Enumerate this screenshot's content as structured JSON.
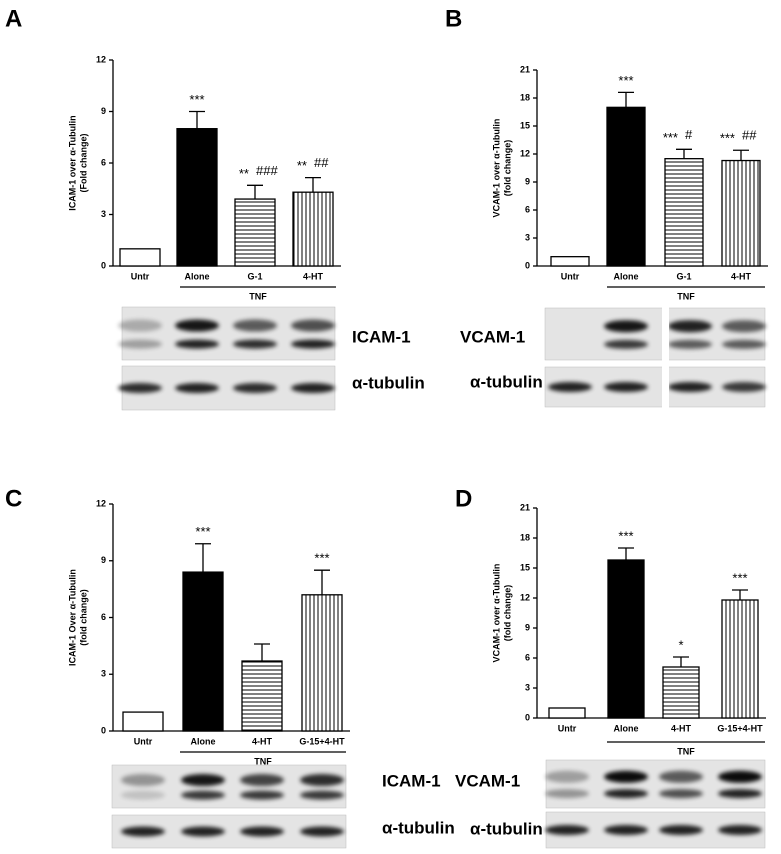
{
  "chart_data": [
    {
      "type": "bar",
      "panel": "A",
      "ylabel": [
        "ICAM-1 over  α-Tubulin",
        "(Fold change)"
      ],
      "categories": [
        "Untr",
        "Alone",
        "G-1",
        "4-HT"
      ],
      "values": [
        1.0,
        8.0,
        3.9,
        4.3
      ],
      "errors": [
        null,
        1.0,
        0.8,
        0.85
      ],
      "fills": [
        "white",
        "black",
        "hstripe",
        "vstripe"
      ],
      "significance": [
        null,
        "***",
        "**",
        "**"
      ],
      "significance2": [
        null,
        null,
        "###",
        "##"
      ],
      "group_label": "TNF",
      "ylim": [
        0,
        12
      ],
      "yticks": [
        0,
        3,
        6,
        9,
        12
      ],
      "blot_labels": [
        "ICAM-1",
        "α-tubulin"
      ]
    },
    {
      "type": "bar",
      "panel": "B",
      "ylabel": [
        "VCAM-1 over  α-Tubulin",
        "(fold change)"
      ],
      "categories": [
        "Untr",
        "Alone",
        "G-1",
        "4-HT"
      ],
      "values": [
        1.0,
        17.0,
        11.5,
        11.3
      ],
      "errors": [
        null,
        1.6,
        1.0,
        1.1
      ],
      "fills": [
        "white",
        "black",
        "hstripe",
        "vstripe"
      ],
      "significance": [
        null,
        "***",
        "***",
        "***"
      ],
      "significance2": [
        null,
        null,
        "#",
        "##"
      ],
      "group_label": "TNF",
      "ylim": [
        0,
        21
      ],
      "yticks": [
        0,
        3,
        6,
        9,
        12,
        15,
        18,
        21
      ],
      "blot_labels": [
        "VCAM-1",
        "α-tubulin"
      ]
    },
    {
      "type": "bar",
      "panel": "C",
      "ylabel": [
        "ICAM-1 Over  α-Tubulin",
        "(fold change)"
      ],
      "categories": [
        "Untr",
        "Alone",
        "4-HT",
        "G-15+4-HT"
      ],
      "values": [
        1.0,
        8.4,
        3.7,
        7.2
      ],
      "errors": [
        null,
        1.5,
        0.9,
        1.3
      ],
      "fills": [
        "white",
        "black",
        "hstripe",
        "vstripe"
      ],
      "significance": [
        null,
        "***",
        null,
        "***"
      ],
      "significance2": [
        null,
        null,
        null,
        null
      ],
      "group_label": "TNF",
      "ylim": [
        0,
        12
      ],
      "yticks": [
        0,
        3,
        6,
        9,
        12
      ],
      "blot_labels": [
        "ICAM-1",
        "α-tubulin"
      ]
    },
    {
      "type": "bar",
      "panel": "D",
      "ylabel": [
        "VCAM-1 over  α-Tubulin",
        "(fold change)"
      ],
      "categories": [
        "Untr",
        "Alone",
        "4-HT",
        "G-15+4-HT"
      ],
      "values": [
        1.0,
        15.8,
        5.1,
        11.8
      ],
      "errors": [
        null,
        1.2,
        1.0,
        1.0
      ],
      "fills": [
        "white",
        "black",
        "hstripe",
        "vstripe"
      ],
      "significance": [
        null,
        "***",
        "*",
        "***"
      ],
      "significance2": [
        null,
        null,
        null,
        null
      ],
      "group_label": "TNF",
      "ylim": [
        0,
        21
      ],
      "yticks": [
        0,
        3,
        6,
        9,
        12,
        15,
        18,
        21
      ],
      "blot_labels": [
        "VCAM-1",
        "α-tubulin"
      ]
    }
  ]
}
